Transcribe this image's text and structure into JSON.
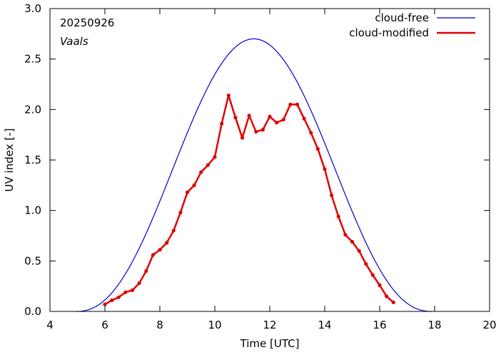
{
  "chart_data": {
    "type": "line",
    "title": "",
    "annotations": {
      "date": "20250926",
      "location": "Vaals"
    },
    "xlabel": "Time  [UTC]",
    "ylabel": "UV index  [-]",
    "xlim": [
      4,
      20
    ],
    "ylim": [
      0.0,
      3.0
    ],
    "xticks": [
      4,
      6,
      8,
      10,
      12,
      14,
      16,
      18,
      20
    ],
    "yticks": [
      0.0,
      0.5,
      1.0,
      1.5,
      2.0,
      2.5,
      3.0
    ],
    "xtick_labels": [
      "4",
      "6",
      "8",
      "10",
      "12",
      "14",
      "16",
      "18",
      "20"
    ],
    "ytick_labels": [
      "0.0",
      "0.5",
      "1.0",
      "1.5",
      "2.0",
      "2.5",
      "3.0"
    ],
    "grid": false,
    "legend": "top-right",
    "series": [
      {
        "name": "cloud-free",
        "color": "#0000cc",
        "markers": false,
        "model": {
          "sunrise": 4.95,
          "sunset": 17.9,
          "peak_time": 11.42,
          "peak_value": 2.7,
          "exponent": 2.3
        }
      },
      {
        "name": "cloud-modified",
        "color": "#e00000",
        "markers": true,
        "x": [
          6.0,
          6.25,
          6.5,
          6.75,
          7.0,
          7.25,
          7.5,
          7.75,
          8.0,
          8.25,
          8.5,
          8.75,
          9.0,
          9.25,
          9.5,
          9.75,
          10.0,
          10.25,
          10.5,
          10.75,
          11.0,
          11.25,
          11.5,
          11.75,
          12.0,
          12.25,
          12.5,
          12.75,
          13.0,
          13.25,
          13.5,
          13.75,
          14.0,
          14.25,
          14.5,
          14.75,
          15.0,
          15.25,
          15.5,
          15.75,
          16.0,
          16.25,
          16.5
        ],
        "y": [
          0.07,
          0.11,
          0.14,
          0.19,
          0.21,
          0.28,
          0.4,
          0.56,
          0.61,
          0.68,
          0.8,
          0.98,
          1.18,
          1.25,
          1.38,
          1.45,
          1.53,
          1.86,
          2.14,
          1.92,
          1.72,
          1.94,
          1.78,
          1.8,
          1.93,
          1.87,
          1.9,
          2.05,
          2.05,
          1.91,
          1.77,
          1.61,
          1.41,
          1.15,
          0.94,
          0.76,
          0.69,
          0.6,
          0.47,
          0.36,
          0.26,
          0.15,
          0.09
        ]
      }
    ]
  }
}
